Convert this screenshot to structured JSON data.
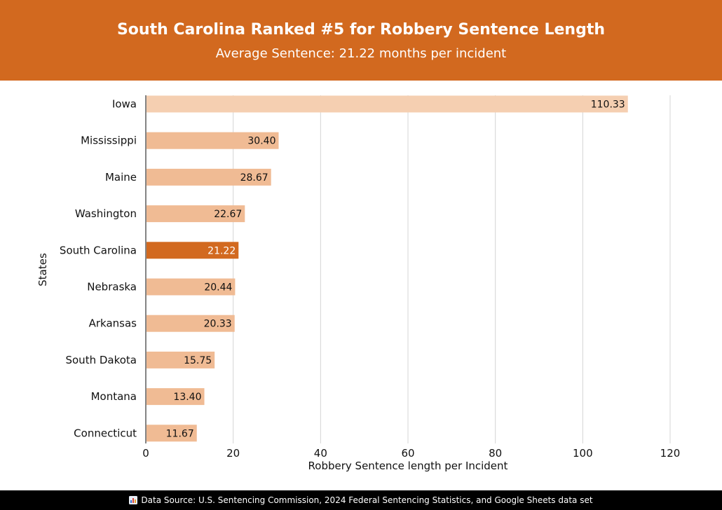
{
  "header": {
    "title": "South Carolina Ranked #5 for Robbery Sentence Length",
    "subtitle": "Average Sentence: 21.22 months per incident"
  },
  "footer": {
    "icon": "bar-chart-icon",
    "text": "Data Source: U.S. Sentencing Commission, 2024 Federal Sentencing Statistics, and Google Sheets data set"
  },
  "colors": {
    "header": "#d2691f",
    "highlight": "#d2691f",
    "bar": "#f0bb94",
    "top_bar": "#f5cfb1"
  },
  "chart_data": {
    "type": "bar",
    "orientation": "horizontal",
    "categories": [
      "Iowa",
      "Mississippi",
      "Maine",
      "Washington",
      "South Carolina",
      "Nebraska",
      "Arkansas",
      "South Dakota",
      "Montana",
      "Connecticut"
    ],
    "values": [
      110.33,
      30.4,
      28.67,
      22.67,
      21.22,
      20.44,
      20.33,
      15.75,
      13.4,
      11.67
    ],
    "value_labels": [
      "110.33",
      "30.40",
      "28.67",
      "22.67",
      "21.22",
      "20.44",
      "20.33",
      "15.75",
      "13.40",
      "11.67"
    ],
    "highlight": "South Carolina",
    "xlabel": "Robbery Sentence length per Incident",
    "ylabel": "States",
    "xlim": [
      0,
      120
    ],
    "xticks": [
      0,
      20,
      40,
      60,
      80,
      100,
      120
    ],
    "grid": "vertical"
  }
}
